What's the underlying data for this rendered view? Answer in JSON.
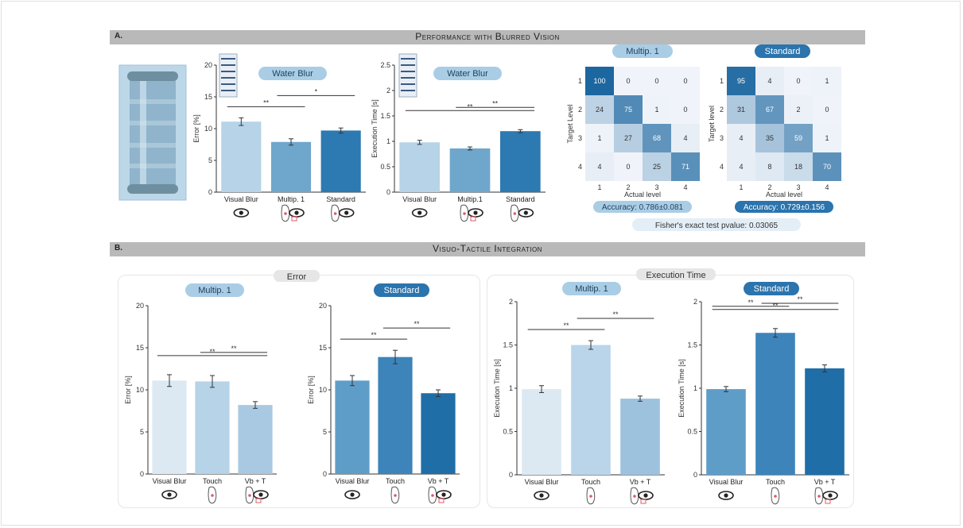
{
  "sections": {
    "a": {
      "letter": "A.",
      "title": "Performance with Blurred Vision"
    },
    "b": {
      "letter": "B.",
      "title": "Visuo-Tactile Integration"
    }
  },
  "groups": {
    "error": "Error",
    "execution_time": "Execution Time"
  },
  "fisher": "Fisher's exact test pvalue: 0.03065",
  "colors": {
    "light": "#b6d3e8",
    "mid": "#6fa6cc",
    "dark": "#2d79b1",
    "darker": "#1c67a0",
    "pale": "#dce9f3"
  },
  "chart_data": [
    {
      "type": "bar",
      "title": "Water Blur",
      "ylabel": "Error [%]",
      "ylim": [
        0,
        20
      ],
      "yticks": [
        0,
        5,
        10,
        15,
        20
      ],
      "categories": [
        "Visual Blur",
        "Multip. 1",
        "Standard"
      ],
      "values": [
        11.1,
        7.9,
        9.7
      ],
      "errors": [
        0.6,
        0.5,
        0.4
      ],
      "significance": [
        {
          "from": 0,
          "to": 1,
          "label": "**"
        },
        {
          "from": 1,
          "to": 2,
          "label": "*"
        }
      ]
    },
    {
      "type": "bar",
      "title": "Water Blur",
      "ylabel": "Execution Time [s]",
      "ylim": [
        0,
        2.5
      ],
      "yticks": [
        0,
        0.5,
        1,
        1.5,
        2,
        2.5
      ],
      "categories": [
        "Visual Blur",
        "Multip.1",
        "Standard"
      ],
      "values": [
        0.98,
        0.86,
        1.2
      ],
      "errors": [
        0.04,
        0.03,
        0.03
      ],
      "significance": [
        {
          "from": 0,
          "to": 2,
          "label": "**"
        },
        {
          "from": 1,
          "to": 2,
          "label": "**"
        }
      ]
    },
    {
      "type": "heatmap",
      "title": "Multip. 1",
      "xlabel": "Actual level",
      "ylabel": "Target Level",
      "x_ticks": [
        "1",
        "2",
        "3",
        "4"
      ],
      "y_ticks": [
        "1",
        "2",
        "3",
        "4"
      ],
      "values": [
        [
          100,
          0,
          0,
          0
        ],
        [
          24,
          75,
          1,
          0
        ],
        [
          1,
          27,
          68,
          4
        ],
        [
          4,
          0,
          25,
          71
        ]
      ],
      "accuracy": "Accuracy: 0.786±0.081"
    },
    {
      "type": "heatmap",
      "title": "Standard",
      "xlabel": "Actual level",
      "ylabel": "Target level",
      "x_ticks": [
        "1",
        "2",
        "3",
        "4"
      ],
      "y_ticks": [
        "1",
        "2",
        "3",
        "4"
      ],
      "values": [
        [
          95,
          4,
          0,
          1
        ],
        [
          31,
          67,
          2,
          0
        ],
        [
          4,
          35,
          59,
          1
        ],
        [
          4,
          8,
          18,
          70
        ]
      ],
      "accuracy": "Accuracy: 0.729±0.156"
    },
    {
      "type": "bar",
      "title": "Multip. 1",
      "ylabel": "Error [%]",
      "ylim": [
        0,
        20
      ],
      "yticks": [
        0,
        5,
        10,
        15,
        20
      ],
      "categories": [
        "Visual Blur",
        "Touch",
        "Vb + T"
      ],
      "values": [
        11.1,
        11.0,
        8.2
      ],
      "errors": [
        0.7,
        0.7,
        0.4
      ],
      "significance": [
        {
          "from": 0,
          "to": 2,
          "label": "**"
        },
        {
          "from": 1,
          "to": 2,
          "label": "**"
        }
      ]
    },
    {
      "type": "bar",
      "title": "Standard",
      "ylabel": "Error [%]",
      "ylim": [
        0,
        20
      ],
      "yticks": [
        0,
        5,
        10,
        15,
        20
      ],
      "categories": [
        "Visual Blur",
        "Touch",
        "Vb + T"
      ],
      "values": [
        11.1,
        13.9,
        9.6
      ],
      "errors": [
        0.6,
        0.8,
        0.4
      ],
      "significance": [
        {
          "from": 0,
          "to": 1,
          "label": "**"
        },
        {
          "from": 1,
          "to": 2,
          "label": "**"
        }
      ]
    },
    {
      "type": "bar",
      "title": "Multip. 1",
      "ylabel": "Execution Time [s]",
      "ylim": [
        0,
        2
      ],
      "yticks": [
        0,
        0.5,
        1,
        1.5,
        2
      ],
      "categories": [
        "Visual Blur",
        "Touch",
        "Vb + T"
      ],
      "values": [
        0.99,
        1.5,
        0.88
      ],
      "errors": [
        0.04,
        0.05,
        0.03
      ],
      "significance": [
        {
          "from": 0,
          "to": 1,
          "label": "**"
        },
        {
          "from": 1,
          "to": 2,
          "label": "**"
        }
      ]
    },
    {
      "type": "bar",
      "title": "Standard",
      "ylabel": "Execution Time [s]",
      "ylim": [
        0,
        2
      ],
      "yticks": [
        0,
        0.5,
        1,
        1.5,
        2
      ],
      "categories": [
        "Visual Blur",
        "Touch",
        "Vb + T"
      ],
      "values": [
        0.99,
        1.64,
        1.23
      ],
      "errors": [
        0.03,
        0.05,
        0.04
      ],
      "significance": [
        {
          "from": 0,
          "to": 2,
          "label": "**"
        },
        {
          "from": 0,
          "to": 1,
          "label": "**"
        },
        {
          "from": 1,
          "to": 2,
          "label": "**"
        }
      ]
    }
  ]
}
